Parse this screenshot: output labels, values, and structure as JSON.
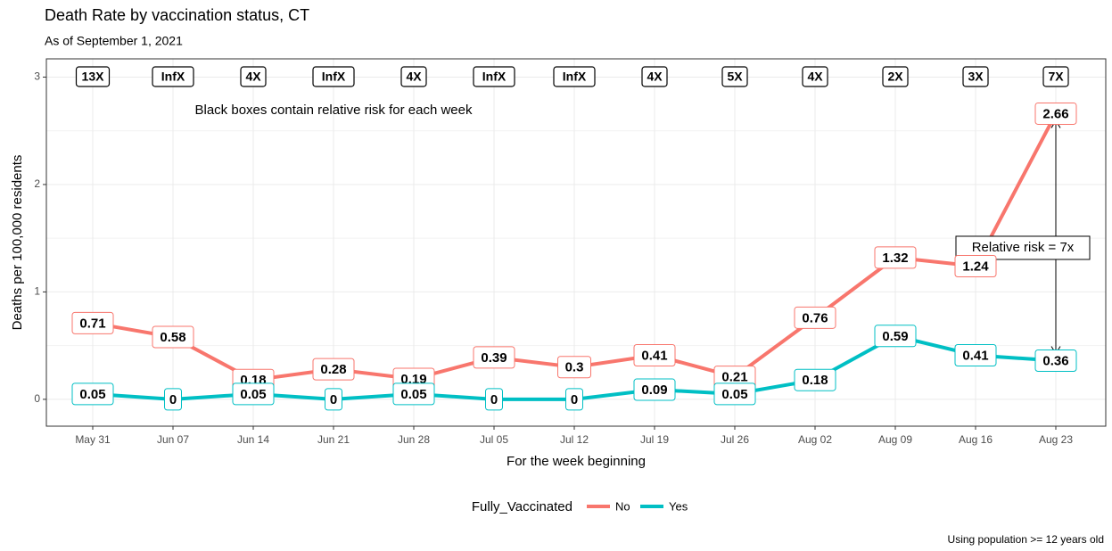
{
  "chart_data": {
    "type": "line",
    "title": "Death Rate by vaccination status, CT",
    "subtitle": "As of September 1, 2021",
    "x_label": "For the week beginning",
    "y_label": "Deaths per 100,000 residents",
    "caption": "Using population >= 12 years old",
    "legend_title": "Fully_Vaccinated",
    "annotations": [
      "Black boxes contain relative risk for each week",
      "Relative risk = 7x"
    ],
    "risk_labels": [
      "13X",
      "InfX",
      "4X",
      "InfX",
      "4X",
      "InfX",
      "InfX",
      "4X",
      "5X",
      "4X",
      "2X",
      "3X",
      "7X"
    ],
    "categories": [
      "May 31",
      "Jun 07",
      "Jun 14",
      "Jun 21",
      "Jun 28",
      "Jul 05",
      "Jul 12",
      "Jul 19",
      "Jul 26",
      "Aug 02",
      "Aug 09",
      "Aug 16",
      "Aug 23"
    ],
    "series": [
      {
        "name": "No",
        "color": "#f8766d",
        "values": [
          0.71,
          0.58,
          0.18,
          0.28,
          0.19,
          0.39,
          0.3,
          0.41,
          0.21,
          0.76,
          1.32,
          1.24,
          2.66
        ]
      },
      {
        "name": "Yes",
        "color": "#00bfc4",
        "values": [
          0.05,
          0,
          0.05,
          0,
          0.05,
          0,
          0,
          0.09,
          0.05,
          0.18,
          0.59,
          0.41,
          0.36
        ]
      }
    ],
    "ylim": [
      -0.25,
      3.17
    ],
    "yticks": [
      0,
      1,
      2,
      3
    ],
    "grid": true,
    "legend_position": "bottom"
  }
}
